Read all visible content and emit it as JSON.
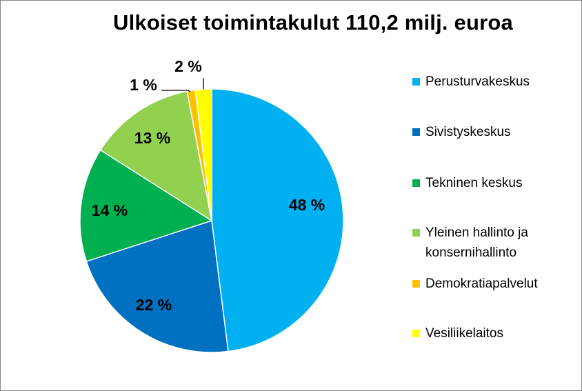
{
  "chart_data": {
    "type": "pie",
    "title": "Ulkoiset toimintakulut 110,2 milj. euroa",
    "slices": [
      {
        "label": "Perusturvakeskus",
        "value": 48,
        "value_label": "48 %",
        "color": "#00B0F0"
      },
      {
        "label": "Sivistyskeskus",
        "value": 22,
        "value_label": "22 %",
        "color": "#0070C0"
      },
      {
        "label": "Tekninen keskus",
        "value": 14,
        "value_label": "14 %",
        "color": "#00B050"
      },
      {
        "label": "Yleinen hallinto ja konsernihallinto",
        "value": 13,
        "value_label": "13 %",
        "color": "#92D050"
      },
      {
        "label": "Demokratiapalvelut",
        "value": 1,
        "value_label": "1 %",
        "color": "#FFC000"
      },
      {
        "label": "Vesiliikelaitos",
        "value": 2,
        "value_label": "2 %",
        "color": "#FFFF00"
      }
    ],
    "legend_position": "right"
  },
  "legend": {
    "items": [
      {
        "lines": [
          "Perusturvakeskus"
        ],
        "color": "#00B0F0"
      },
      {
        "lines": [
          "Sivistyskeskus"
        ],
        "color": "#0070C0"
      },
      {
        "lines": [
          "Tekninen keskus"
        ],
        "color": "#00B050"
      },
      {
        "lines": [
          "Yleinen hallinto ja",
          "konsernihallinto"
        ],
        "color": "#92D050"
      },
      {
        "lines": [
          "Demokratiapalvelut"
        ],
        "color": "#FFC000"
      },
      {
        "lines": [
          "Vesiliikelaitos"
        ],
        "color": "#FFFF00"
      }
    ]
  }
}
